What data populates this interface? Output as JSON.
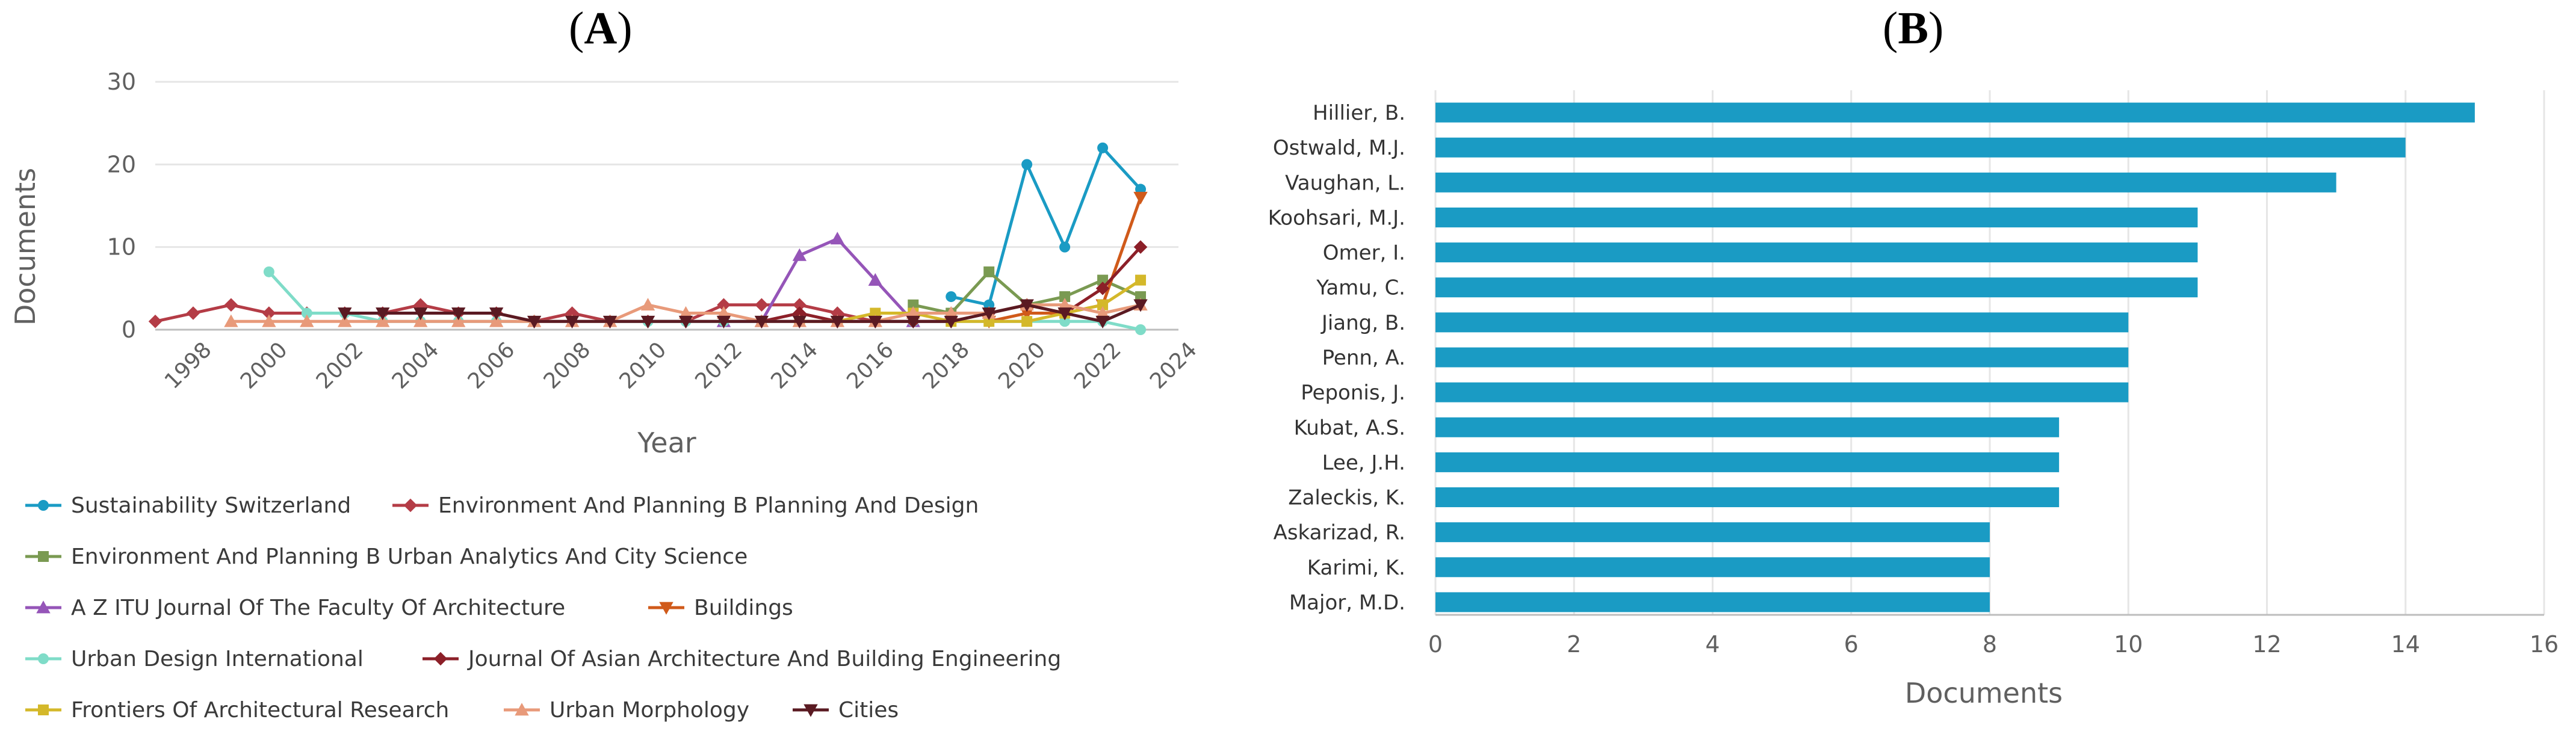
{
  "panel_a": {
    "label_open": "(",
    "label_letter": "A",
    "label_close": ")"
  },
  "panel_b": {
    "label_open": "(",
    "label_letter": "B",
    "label_close": ")"
  },
  "chart_data": [
    {
      "type": "line",
      "title": "",
      "xlabel": "Year",
      "ylabel": "Documents",
      "xlim": [
        1997,
        2024
      ],
      "ylim": [
        0,
        30
      ],
      "yticks": [
        0,
        10,
        20,
        30
      ],
      "xticks": [
        1998,
        2000,
        2002,
        2004,
        2006,
        2008,
        2010,
        2012,
        2014,
        2016,
        2018,
        2020,
        2022,
        2024
      ],
      "grid": "horizontal",
      "legend_position": "bottom",
      "series": [
        {
          "name": "Sustainability Switzerland",
          "color": "#1a9bc4",
          "marker": "circle",
          "x": [
            2018,
            2019,
            2020,
            2021,
            2022,
            2023
          ],
          "y": [
            4,
            3,
            20,
            10,
            22,
            17
          ]
        },
        {
          "name": "Environment And Planning B Planning And Design",
          "color": "#b43c46",
          "marker": "diamond",
          "x": [
            1997,
            1998,
            1999,
            2000,
            2001,
            2002,
            2003,
            2004,
            2005,
            2006,
            2007,
            2008,
            2009,
            2010,
            2011,
            2012,
            2013,
            2014,
            2015,
            2016
          ],
          "y": [
            1,
            2,
            3,
            2,
            2,
            2,
            2,
            3,
            2,
            2,
            1,
            2,
            1,
            1,
            1,
            3,
            3,
            3,
            2,
            1
          ]
        },
        {
          "name": "Environment And Planning B Urban Analytics And City Science",
          "color": "#7a9a52",
          "marker": "square",
          "x": [
            2017,
            2018,
            2019,
            2020,
            2021,
            2022,
            2023
          ],
          "y": [
            3,
            2,
            7,
            3,
            4,
            6,
            4
          ]
        },
        {
          "name": "A Z ITU Journal Of The Faculty Of Architecture",
          "color": "#9555b8",
          "marker": "triangle",
          "x": [
            2012,
            2013,
            2014,
            2015,
            2016,
            2017
          ],
          "y": [
            1,
            1,
            9,
            11,
            6,
            1
          ]
        },
        {
          "name": "Buildings",
          "color": "#d05a1a",
          "marker": "triangle-down",
          "x": [
            2019,
            2020,
            2021,
            2022,
            2023
          ],
          "y": [
            1,
            2,
            2,
            3,
            16
          ]
        },
        {
          "name": "Urban Design International",
          "color": "#7fdcc8",
          "marker": "circle",
          "x": [
            2000,
            2001,
            2002,
            2003,
            2004,
            2005,
            2006,
            2007,
            2008,
            2009,
            2010,
            2011,
            2012,
            2013,
            2014,
            2015,
            2016,
            2017,
            2018,
            2019,
            2020,
            2021,
            2022,
            2023
          ],
          "y": [
            7,
            2,
            2,
            1,
            1,
            1,
            1,
            1,
            1,
            1,
            1,
            1,
            1,
            1,
            1,
            1,
            1,
            1,
            1,
            1,
            1,
            1,
            1,
            0
          ]
        },
        {
          "name": "Journal Of Asian Architecture And Building Engineering",
          "color": "#8c1f28",
          "marker": "diamond",
          "x": [
            2013,
            2014,
            2015,
            2016,
            2017,
            2018,
            2019,
            2020,
            2021,
            2022,
            2023
          ],
          "y": [
            1,
            2,
            1,
            1,
            1,
            1,
            2,
            3,
            2,
            5,
            10
          ]
        },
        {
          "name": "Frontiers Of Architectural Research",
          "color": "#d4b82a",
          "marker": "square",
          "x": [
            2014,
            2015,
            2016,
            2017,
            2018,
            2019,
            2020,
            2021,
            2022,
            2023
          ],
          "y": [
            1,
            1,
            2,
            2,
            1,
            1,
            1,
            2,
            3,
            6
          ]
        },
        {
          "name": "Urban Morphology",
          "color": "#e89a7a",
          "marker": "triangle",
          "x": [
            1999,
            2000,
            2001,
            2002,
            2003,
            2004,
            2005,
            2006,
            2007,
            2008,
            2009,
            2010,
            2011,
            2012,
            2013,
            2014,
            2015,
            2016,
            2017,
            2018,
            2019,
            2020,
            2021,
            2022,
            2023
          ],
          "y": [
            1,
            1,
            1,
            1,
            1,
            1,
            1,
            1,
            1,
            1,
            1,
            3,
            2,
            2,
            1,
            1,
            1,
            1,
            2,
            2,
            2,
            3,
            3,
            2,
            3
          ]
        },
        {
          "name": "Cities",
          "color": "#5a1a22",
          "marker": "triangle-down",
          "x": [
            2002,
            2003,
            2004,
            2005,
            2006,
            2007,
            2008,
            2009,
            2010,
            2011,
            2012,
            2013,
            2014,
            2015,
            2016,
            2017,
            2018,
            2019,
            2020,
            2021,
            2022,
            2023
          ],
          "y": [
            2,
            2,
            2,
            2,
            2,
            1,
            1,
            1,
            1,
            1,
            1,
            1,
            1,
            1,
            1,
            1,
            1,
            2,
            3,
            2,
            1,
            3
          ]
        }
      ]
    },
    {
      "type": "bar",
      "orientation": "horizontal",
      "title": "",
      "xlabel": "Documents",
      "ylabel": "",
      "xlim": [
        0,
        16
      ],
      "xticks": [
        0,
        2,
        4,
        6,
        8,
        10,
        12,
        14,
        16
      ],
      "grid": "vertical",
      "bar_color": "#1a9bc4",
      "categories": [
        "Hillier, B.",
        "Ostwald, M.J.",
        "Vaughan, L.",
        "Koohsari, M.J.",
        "Omer, I.",
        "Yamu, C.",
        "Jiang, B.",
        "Penn, A.",
        "Peponis, J.",
        "Kubat, A.S.",
        "Lee, J.H.",
        "Zaleckis, K.",
        "Askarizad, R.",
        "Karimi, K.",
        "Major, M.D."
      ],
      "values": [
        15,
        14,
        13,
        11,
        11,
        11,
        10,
        10,
        10,
        9,
        9,
        9,
        8,
        8,
        8
      ]
    }
  ]
}
